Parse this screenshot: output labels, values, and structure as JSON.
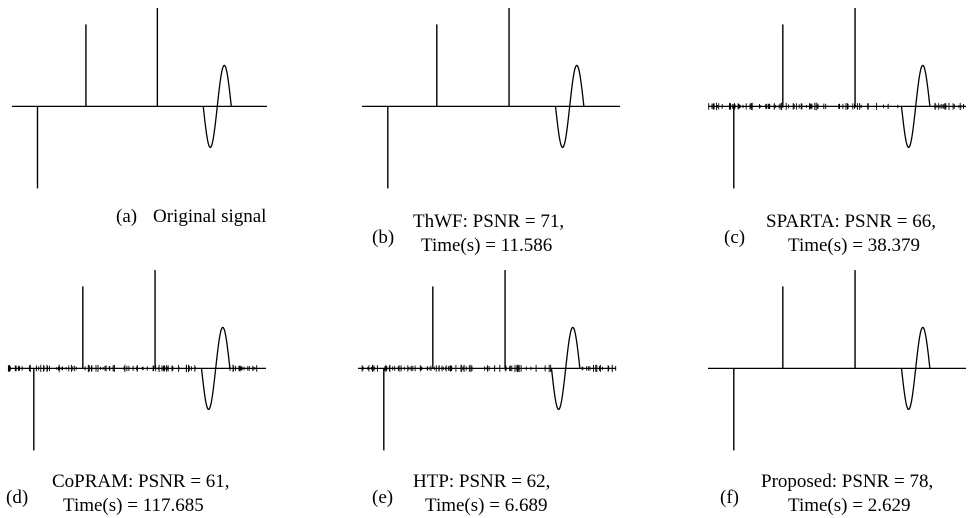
{
  "figure": {
    "panels": [
      {
        "label": "(a)",
        "line1": "Original signal",
        "line2": "",
        "noisy": false
      },
      {
        "label": "(b)",
        "line1": "ThWF: PSNR = 71,",
        "line2": "Time(s) = 11.586",
        "noisy": false
      },
      {
        "label": "(c)",
        "line1": "SPARTA: PSNR = 66,",
        "line2": "Time(s) = 38.379",
        "noisy": true
      },
      {
        "label": "(d)",
        "line1": "CoPRAM: PSNR = 61,",
        "line2": "Time(s) = 117.685",
        "noisy": true
      },
      {
        "label": "(e)",
        "line1": "HTP: PSNR = 62,",
        "line2": "Time(s) = 6.689",
        "noisy": true
      },
      {
        "label": "(f)",
        "line1": "Proposed: PSNR = 78,",
        "line2": "Time(s) = 2.629",
        "noisy": false
      }
    ]
  },
  "chart_data": {
    "type": "line",
    "x_range": [
      0,
      1
    ],
    "y_range": [
      -1,
      1.2
    ],
    "signal": {
      "spikes": [
        {
          "x": 0.1,
          "value": -1.0
        },
        {
          "x": 0.29,
          "value": 1.0
        },
        {
          "x": 0.57,
          "value": 1.2
        }
      ],
      "wavelet": {
        "x_start": 0.75,
        "x_end": 0.86,
        "amplitude": 0.5
      }
    }
  }
}
